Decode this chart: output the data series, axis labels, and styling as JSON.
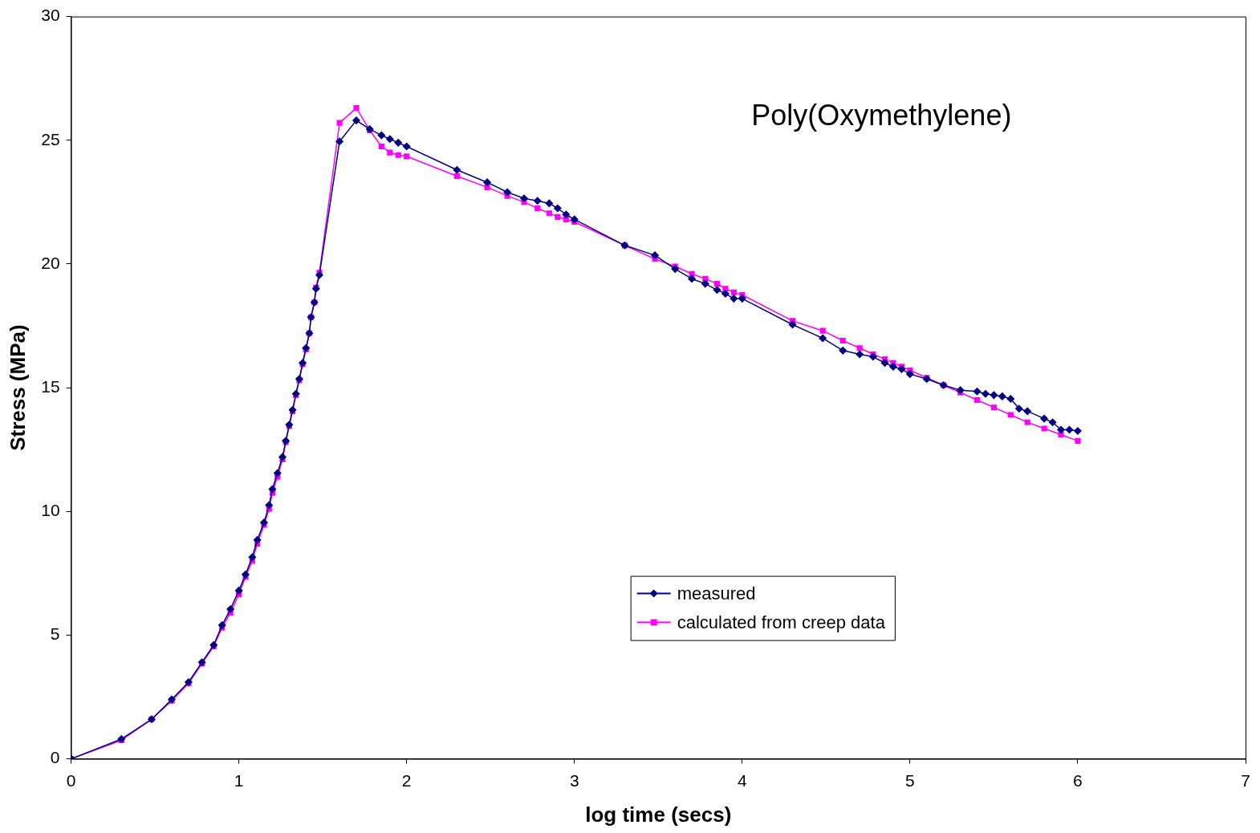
{
  "chart_data": {
    "type": "line",
    "title": "Poly(Oxymethylene)",
    "xlabel": "log time (secs)",
    "ylabel": "Stress (MPa)",
    "xlim": [
      0,
      7
    ],
    "xticks": [
      0,
      1,
      2,
      3,
      4,
      5,
      6,
      7
    ],
    "ylim": [
      0,
      30
    ],
    "yticks": [
      0,
      5,
      10,
      15,
      20,
      25,
      30
    ],
    "grid": false,
    "legend": "bottom",
    "line_style": "solid",
    "series": [
      {
        "name": "measured",
        "color": "#000080",
        "marker": "diamond",
        "x": [
          0,
          0.3,
          0.48,
          0.6,
          0.7,
          0.78,
          0.85,
          0.9,
          0.95,
          1.0,
          1.04,
          1.08,
          1.11,
          1.15,
          1.18,
          1.2,
          1.23,
          1.26,
          1.28,
          1.3,
          1.32,
          1.34,
          1.36,
          1.38,
          1.4,
          1.42,
          1.43,
          1.45,
          1.46,
          1.48,
          1.6,
          1.7,
          1.78,
          1.85,
          1.9,
          1.95,
          2.0,
          2.3,
          2.48,
          2.6,
          2.7,
          2.78,
          2.85,
          2.9,
          2.95,
          3.0,
          3.3,
          3.48,
          3.6,
          3.7,
          3.78,
          3.85,
          3.9,
          3.95,
          4.0,
          4.3,
          4.48,
          4.6,
          4.7,
          4.78,
          4.85,
          4.9,
          4.95,
          5.0,
          5.1,
          5.2,
          5.3,
          5.4,
          5.45,
          5.5,
          5.55,
          5.6,
          5.65,
          5.7,
          5.8,
          5.85,
          5.9,
          5.95,
          6.0
        ],
        "values": [
          0,
          0.8,
          1.6,
          2.4,
          3.1,
          3.9,
          4.6,
          5.4,
          6.05,
          6.8,
          7.45,
          8.15,
          8.85,
          9.55,
          10.25,
          10.9,
          11.55,
          12.2,
          12.85,
          13.5,
          14.1,
          14.75,
          15.35,
          16.0,
          16.6,
          17.2,
          17.85,
          18.45,
          19.0,
          19.55,
          24.95,
          25.8,
          25.45,
          25.2,
          25.05,
          24.9,
          24.75,
          23.8,
          23.3,
          22.9,
          22.65,
          22.55,
          22.45,
          22.25,
          22.0,
          21.8,
          20.75,
          20.35,
          19.8,
          19.4,
          19.2,
          18.95,
          18.8,
          18.6,
          18.6,
          17.55,
          17.0,
          16.5,
          16.35,
          16.25,
          16.0,
          15.85,
          15.75,
          15.55,
          15.35,
          15.1,
          14.9,
          14.85,
          14.75,
          14.7,
          14.65,
          14.55,
          14.15,
          14.05,
          13.75,
          13.6,
          13.3,
          13.3,
          13.25
        ]
      },
      {
        "name": "calculated from creep data",
        "color": "#ff00ff",
        "marker": "square",
        "x": [
          0,
          0.3,
          0.48,
          0.6,
          0.7,
          0.78,
          0.85,
          0.9,
          0.95,
          1.0,
          1.04,
          1.08,
          1.11,
          1.15,
          1.18,
          1.2,
          1.23,
          1.26,
          1.28,
          1.3,
          1.32,
          1.34,
          1.36,
          1.38,
          1.4,
          1.42,
          1.43,
          1.45,
          1.46,
          1.48,
          1.6,
          1.7,
          1.78,
          1.85,
          1.9,
          1.95,
          2.0,
          2.3,
          2.48,
          2.6,
          2.7,
          2.78,
          2.85,
          2.9,
          2.95,
          3.0,
          3.3,
          3.48,
          3.6,
          3.7,
          3.78,
          3.85,
          3.9,
          3.95,
          4.0,
          4.3,
          4.48,
          4.6,
          4.7,
          4.78,
          4.85,
          4.9,
          4.95,
          5.0,
          5.1,
          5.2,
          5.3,
          5.4,
          5.5,
          5.6,
          5.7,
          5.8,
          5.9,
          6.0
        ],
        "values": [
          0,
          0.75,
          1.6,
          2.35,
          3.05,
          3.85,
          4.55,
          5.3,
          5.9,
          6.65,
          7.35,
          8.0,
          8.7,
          9.45,
          10.1,
          10.75,
          11.4,
          12.1,
          12.8,
          13.45,
          14.05,
          14.7,
          15.3,
          15.95,
          16.55,
          17.2,
          17.85,
          18.45,
          19.05,
          19.65,
          25.7,
          26.3,
          25.4,
          24.75,
          24.5,
          24.4,
          24.35,
          23.55,
          23.1,
          22.75,
          22.5,
          22.25,
          22.05,
          21.9,
          21.8,
          21.7,
          20.75,
          20.2,
          19.9,
          19.6,
          19.4,
          19.2,
          19.0,
          18.85,
          18.75,
          17.7,
          17.3,
          16.9,
          16.6,
          16.35,
          16.15,
          16.0,
          15.85,
          15.7,
          15.4,
          15.1,
          14.8,
          14.5,
          14.2,
          13.9,
          13.6,
          13.35,
          13.1,
          12.85
        ]
      }
    ]
  }
}
